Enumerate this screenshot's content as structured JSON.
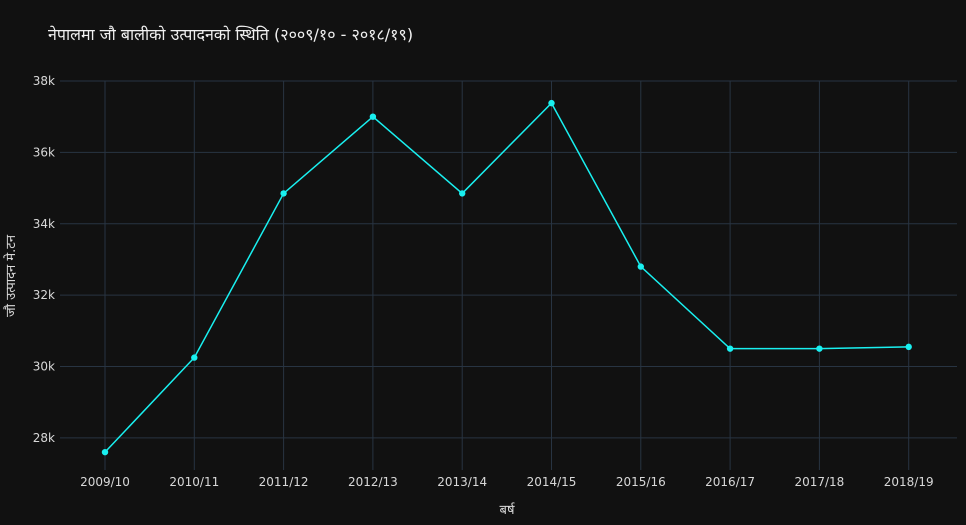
{
  "chart_data": {
    "type": "line",
    "title": "नेपालमा जौ बालीको उत्पादनको स्थिति (२००९/१० - २०१८/१९)",
    "xlabel": "बर्ष",
    "ylabel": "जौ उत्पादन मे.टन",
    "categories": [
      "2009/10",
      "2010/11",
      "2011/12",
      "2012/13",
      "2013/14",
      "2014/15",
      "2015/16",
      "2016/17",
      "2017/18",
      "2018/19"
    ],
    "series": [
      {
        "values": [
          27600,
          30250,
          34850,
          37000,
          34850,
          37380,
          32800,
          30500,
          30500,
          30550
        ],
        "color": "#19f0f0"
      }
    ],
    "ylim": [
      27100,
      38000
    ],
    "yticks": [
      28000,
      30000,
      32000,
      34000,
      36000,
      38000
    ],
    "ytick_labels": [
      "28k",
      "30k",
      "32k",
      "34k",
      "36k",
      "38k"
    ],
    "grid": true,
    "colors": {
      "background": "#111111",
      "grid": "#283442",
      "text": "#d8d8d8"
    }
  }
}
